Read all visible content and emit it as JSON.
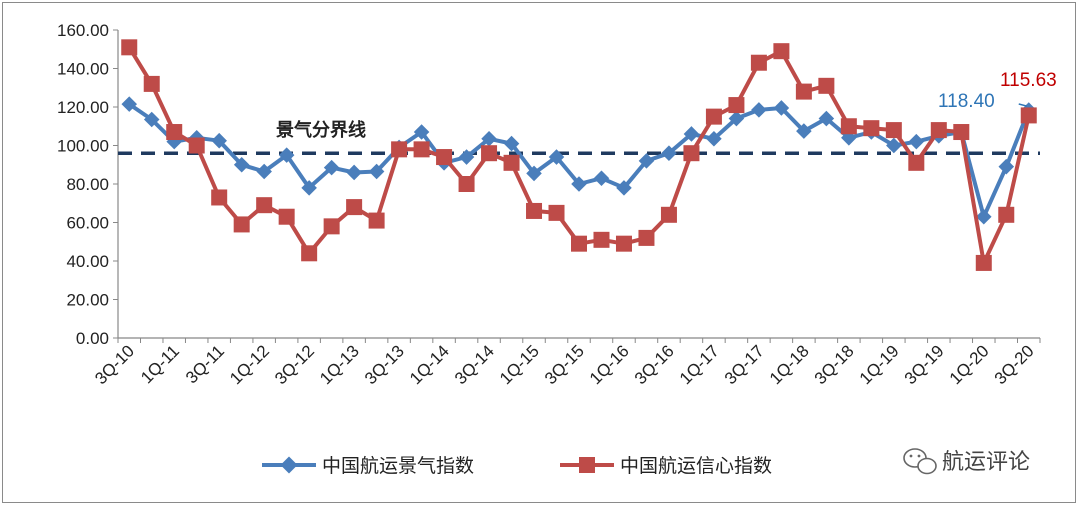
{
  "chart_data": {
    "type": "line",
    "title": "",
    "xlabel": "",
    "ylabel": "",
    "ylim": [
      0,
      160
    ],
    "yticks": [
      "160.00",
      "140.00",
      "120.00",
      "100.00",
      "80.00",
      "60.00",
      "40.00",
      "20.00",
      "0.00"
    ],
    "x_tick_labels": [
      "3Q-10",
      "1Q-11",
      "3Q-11",
      "1Q-12",
      "3Q-12",
      "1Q-13",
      "3Q-13",
      "1Q-14",
      "3Q-14",
      "1Q-15",
      "3Q-15",
      "1Q-16",
      "3Q-16",
      "1Q-17",
      "3Q-17",
      "1Q-18",
      "3Q-18",
      "1Q-19",
      "3Q-19",
      "1Q-20",
      "3Q-20"
    ],
    "categories": [
      "3Q-10",
      "4Q-10",
      "1Q-11",
      "2Q-11",
      "3Q-11",
      "4Q-11",
      "1Q-12",
      "2Q-12",
      "3Q-12",
      "4Q-12",
      "1Q-13",
      "2Q-13",
      "3Q-13",
      "4Q-13",
      "1Q-14",
      "2Q-14",
      "3Q-14",
      "4Q-14",
      "1Q-15",
      "2Q-15",
      "3Q-15",
      "4Q-15",
      "1Q-16",
      "2Q-16",
      "3Q-16",
      "4Q-16",
      "1Q-17",
      "2Q-17",
      "3Q-17",
      "4Q-17",
      "1Q-18",
      "2Q-18",
      "3Q-18",
      "4Q-18",
      "1Q-19",
      "2Q-19",
      "3Q-19",
      "4Q-19",
      "1Q-20",
      "2Q-20",
      "3Q-20"
    ],
    "series": [
      {
        "name": "中国航运景气指数",
        "color": "#4a7ebb",
        "marker": "diamond",
        "values": [
          121.5,
          113.5,
          102,
          104,
          102.5,
          90,
          86.5,
          95,
          78,
          88.5,
          86,
          86.5,
          99,
          107,
          91,
          94,
          103.5,
          101,
          85.5,
          94,
          80,
          83,
          78,
          92,
          96,
          106,
          103.5,
          114,
          118.5,
          119.5,
          107.5,
          114,
          104,
          107,
          100,
          102,
          105,
          107,
          63,
          89,
          118.4
        ]
      },
      {
        "name": "中国航运信心指数",
        "color": "#be4b48",
        "marker": "square",
        "values": [
          151,
          132,
          107,
          100,
          73,
          59,
          69,
          63,
          44,
          58,
          68,
          61,
          98,
          98,
          94,
          80,
          96,
          91,
          66,
          65,
          49,
          51,
          49,
          52,
          64,
          96,
          115,
          121,
          143,
          149,
          128,
          131,
          110,
          109,
          108,
          91,
          108,
          107,
          39,
          64,
          115.63
        ]
      }
    ],
    "reference_line": {
      "label": "景气分界线",
      "value": 96,
      "color": "#1f3a5f"
    },
    "data_labels": [
      {
        "series": "中国航运景气指数",
        "text": "118.40",
        "color": "#2e75b6"
      },
      {
        "series": "中国航运信心指数",
        "text": "115.63",
        "color": "#c00000"
      }
    ],
    "legend_position": "bottom",
    "grid": false
  },
  "watermark": {
    "text": "航运评论",
    "icon": "wechat-icon"
  }
}
